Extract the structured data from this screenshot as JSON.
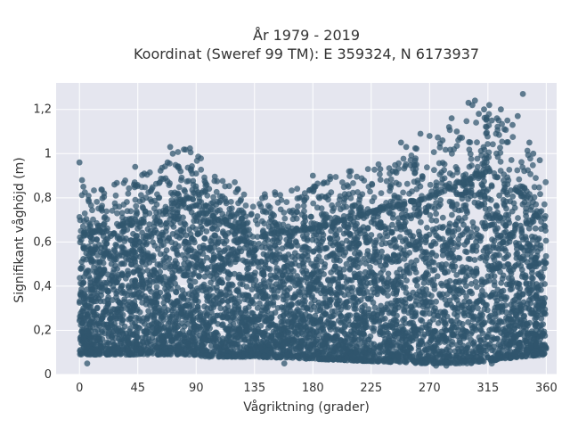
{
  "chart_data": {
    "type": "scatter",
    "title_line1": "År 1979 - 2019",
    "title_line2": "Koordinat (Sweref 99 TM): E 359324, N 6173937",
    "xlabel": "Vågriktning (grader)",
    "ylabel": "Signifikant våghöjd (m)",
    "xlim": [
      -18,
      368
    ],
    "ylim": [
      0,
      1.32
    ],
    "xticks": [
      0,
      45,
      90,
      135,
      180,
      225,
      270,
      315,
      360
    ],
    "xtick_labels": [
      "0",
      "45",
      "90",
      "135",
      "180",
      "225",
      "270",
      "315",
      "360"
    ],
    "yticks": [
      0,
      0.2,
      0.4,
      0.6,
      0.8,
      1,
      1.2
    ],
    "ytick_labels": [
      "0",
      "0,2",
      "0,4",
      "0,6",
      "0,8",
      "1",
      "1,2"
    ],
    "grid": true,
    "marker_color": "#30566e",
    "background_color": "#e5e6ef",
    "envelope": {
      "direction": [
        0,
        20,
        45,
        70,
        85,
        100,
        135,
        180,
        225,
        270,
        300,
        315,
        340,
        360
      ],
      "lower_height": [
        0.09,
        0.09,
        0.09,
        0.09,
        0.09,
        0.08,
        0.08,
        0.07,
        0.06,
        0.05,
        0.05,
        0.06,
        0.08,
        0.09
      ],
      "upper_height": [
        0.62,
        0.66,
        0.68,
        0.74,
        0.8,
        0.72,
        0.62,
        0.66,
        0.73,
        0.8,
        0.88,
        0.92,
        0.82,
        0.66
      ]
    },
    "outliers": [
      {
        "x": 0,
        "y": 0.96
      },
      {
        "x": 2,
        "y": 0.88
      },
      {
        "x": 3,
        "y": 0.85
      },
      {
        "x": 7,
        "y": 0.79
      },
      {
        "x": 19,
        "y": 0.82
      },
      {
        "x": 27,
        "y": 0.86
      },
      {
        "x": 42,
        "y": 0.86
      },
      {
        "x": 43,
        "y": 0.94
      },
      {
        "x": 50,
        "y": 0.91
      },
      {
        "x": 55,
        "y": 0.83
      },
      {
        "x": 70,
        "y": 1.03
      },
      {
        "x": 72,
        "y": 1.0
      },
      {
        "x": 68,
        "y": 0.96
      },
      {
        "x": 78,
        "y": 0.92
      },
      {
        "x": 86,
        "y": 0.93
      },
      {
        "x": 90,
        "y": 0.91
      },
      {
        "x": 100,
        "y": 0.84
      },
      {
        "x": 108,
        "y": 0.78
      },
      {
        "x": 118,
        "y": 0.72
      },
      {
        "x": 140,
        "y": 0.76
      },
      {
        "x": 150,
        "y": 0.72
      },
      {
        "x": 162,
        "y": 0.74
      },
      {
        "x": 175,
        "y": 0.8
      },
      {
        "x": 180,
        "y": 0.9
      },
      {
        "x": 182,
        "y": 0.85
      },
      {
        "x": 208,
        "y": 0.92
      },
      {
        "x": 232,
        "y": 0.93
      },
      {
        "x": 248,
        "y": 1.05
      },
      {
        "x": 252,
        "y": 1.03
      },
      {
        "x": 258,
        "y": 0.95
      },
      {
        "x": 263,
        "y": 1.09
      },
      {
        "x": 270,
        "y": 1.08
      },
      {
        "x": 280,
        "y": 1.06
      },
      {
        "x": 285,
        "y": 1.12
      },
      {
        "x": 287,
        "y": 1.16
      },
      {
        "x": 291,
        "y": 1.1
      },
      {
        "x": 300,
        "y": 1.23
      },
      {
        "x": 303,
        "y": 1.22
      },
      {
        "x": 305,
        "y": 1.24
      },
      {
        "x": 308,
        "y": 1.18
      },
      {
        "x": 312,
        "y": 1.2
      },
      {
        "x": 316,
        "y": 1.22
      },
      {
        "x": 318,
        "y": 1.15
      },
      {
        "x": 322,
        "y": 1.16
      },
      {
        "x": 325,
        "y": 1.2
      },
      {
        "x": 330,
        "y": 1.15
      },
      {
        "x": 334,
        "y": 1.13
      },
      {
        "x": 338,
        "y": 1.17
      },
      {
        "x": 342,
        "y": 1.27
      },
      {
        "x": 347,
        "y": 1.05
      },
      {
        "x": 350,
        "y": 1.0
      },
      {
        "x": 355,
        "y": 0.97
      },
      {
        "x": 6,
        "y": 0.05
      },
      {
        "x": 158,
        "y": 0.05
      },
      {
        "x": 275,
        "y": 0.04
      },
      {
        "x": 283,
        "y": 0.04
      },
      {
        "x": 290,
        "y": 0.05
      },
      {
        "x": 318,
        "y": 0.05
      }
    ]
  }
}
